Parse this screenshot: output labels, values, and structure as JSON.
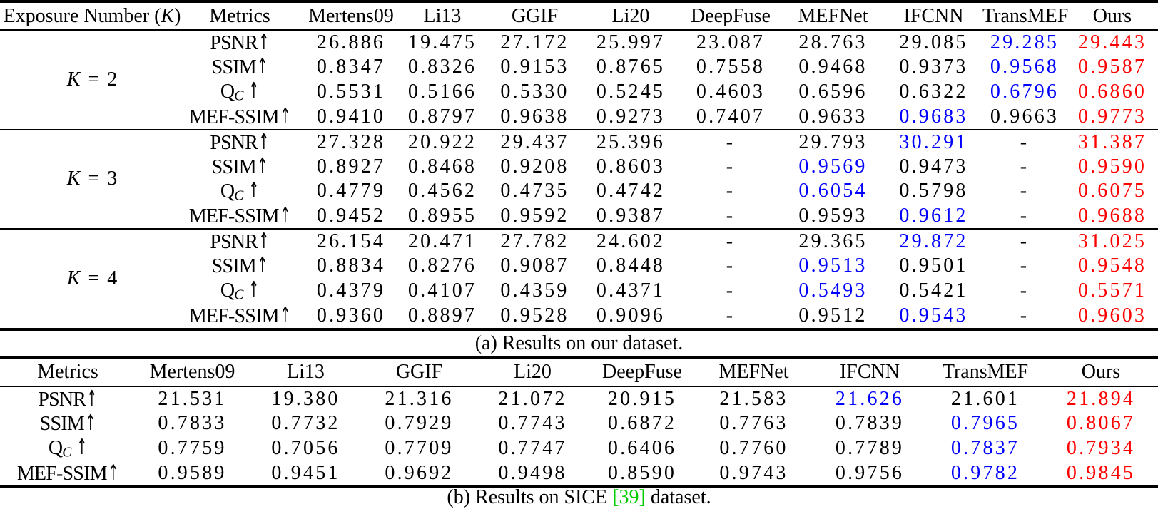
{
  "colors": {
    "best": "#ff0000",
    "second_best": "#0000ff",
    "citation": "#00cc00"
  },
  "table_a": {
    "columns": [
      "Exposure Number (K)",
      "Metrics",
      "Mertens09",
      "Li13",
      "GGIF",
      "Li20",
      "DeepFuse",
      "MEFNet",
      "IFCNN",
      "TransMEF",
      "Ours"
    ],
    "groups": [
      {
        "exposure": "K = 2",
        "rows": [
          {
            "metric": "PSNR↑",
            "values": [
              {
                "v": "26.886"
              },
              {
                "v": "19.475"
              },
              {
                "v": "27.172"
              },
              {
                "v": "25.997"
              },
              {
                "v": "23.087"
              },
              {
                "v": "28.763"
              },
              {
                "v": "29.085"
              },
              {
                "v": "29.285",
                "c": "second"
              },
              {
                "v": "29.443",
                "c": "best"
              }
            ]
          },
          {
            "metric": "SSIM↑",
            "values": [
              {
                "v": "0.8347"
              },
              {
                "v": "0.8326"
              },
              {
                "v": "0.9153"
              },
              {
                "v": "0.8765"
              },
              {
                "v": "0.7558"
              },
              {
                "v": "0.9468"
              },
              {
                "v": "0.9373"
              },
              {
                "v": "0.9568",
                "c": "second"
              },
              {
                "v": "0.9587",
                "c": "best"
              }
            ]
          },
          {
            "metric": "Q_C ↑",
            "values": [
              {
                "v": "0.5531"
              },
              {
                "v": "0.5166"
              },
              {
                "v": "0.5330"
              },
              {
                "v": "0.5245"
              },
              {
                "v": "0.4603"
              },
              {
                "v": "0.6596"
              },
              {
                "v": "0.6322"
              },
              {
                "v": "0.6796",
                "c": "second"
              },
              {
                "v": "0.6860",
                "c": "best"
              }
            ]
          },
          {
            "metric": "MEF-SSIM↑",
            "values": [
              {
                "v": "0.9410"
              },
              {
                "v": "0.8797"
              },
              {
                "v": "0.9638"
              },
              {
                "v": "0.9273"
              },
              {
                "v": "0.7407"
              },
              {
                "v": "0.9633"
              },
              {
                "v": "0.9683",
                "c": "second"
              },
              {
                "v": "0.9663"
              },
              {
                "v": "0.9773",
                "c": "best"
              }
            ]
          }
        ]
      },
      {
        "exposure": "K = 3",
        "rows": [
          {
            "metric": "PSNR↑",
            "values": [
              {
                "v": "27.328"
              },
              {
                "v": "20.922"
              },
              {
                "v": "29.437"
              },
              {
                "v": "25.396"
              },
              {
                "v": "-"
              },
              {
                "v": "29.793"
              },
              {
                "v": "30.291",
                "c": "second"
              },
              {
                "v": "-"
              },
              {
                "v": "31.387",
                "c": "best"
              }
            ]
          },
          {
            "metric": "SSIM↑",
            "values": [
              {
                "v": "0.8927"
              },
              {
                "v": "0.8468"
              },
              {
                "v": "0.9208"
              },
              {
                "v": "0.8603"
              },
              {
                "v": "-"
              },
              {
                "v": "0.9569",
                "c": "second"
              },
              {
                "v": "0.9473"
              },
              {
                "v": "-"
              },
              {
                "v": "0.9590",
                "c": "best"
              }
            ]
          },
          {
            "metric": "Q_C ↑",
            "values": [
              {
                "v": "0.4779"
              },
              {
                "v": "0.4562"
              },
              {
                "v": "0.4735"
              },
              {
                "v": "0.4742"
              },
              {
                "v": "-"
              },
              {
                "v": "0.6054",
                "c": "second"
              },
              {
                "v": "0.5798"
              },
              {
                "v": "-"
              },
              {
                "v": "0.6075",
                "c": "best"
              }
            ]
          },
          {
            "metric": "MEF-SSIM↑",
            "values": [
              {
                "v": "0.9452"
              },
              {
                "v": "0.8955"
              },
              {
                "v": "0.9592"
              },
              {
                "v": "0.9387"
              },
              {
                "v": "-"
              },
              {
                "v": "0.9593"
              },
              {
                "v": "0.9612",
                "c": "second"
              },
              {
                "v": "-"
              },
              {
                "v": "0.9688",
                "c": "best"
              }
            ]
          }
        ]
      },
      {
        "exposure": "K = 4",
        "rows": [
          {
            "metric": "PSNR↑",
            "values": [
              {
                "v": "26.154"
              },
              {
                "v": "20.471"
              },
              {
                "v": "27.782"
              },
              {
                "v": "24.602"
              },
              {
                "v": "-"
              },
              {
                "v": "29.365"
              },
              {
                "v": "29.872",
                "c": "second"
              },
              {
                "v": "-"
              },
              {
                "v": "31.025",
                "c": "best"
              }
            ]
          },
          {
            "metric": "SSIM↑",
            "values": [
              {
                "v": "0.8834"
              },
              {
                "v": "0.8276"
              },
              {
                "v": "0.9087"
              },
              {
                "v": "0.8448"
              },
              {
                "v": "-"
              },
              {
                "v": "0.9513",
                "c": "second"
              },
              {
                "v": "0.9501"
              },
              {
                "v": "-"
              },
              {
                "v": "0.9548",
                "c": "best"
              }
            ]
          },
          {
            "metric": "Q_C ↑",
            "values": [
              {
                "v": "0.4379"
              },
              {
                "v": "0.4107"
              },
              {
                "v": "0.4359"
              },
              {
                "v": "0.4371"
              },
              {
                "v": "-"
              },
              {
                "v": "0.5493",
                "c": "second"
              },
              {
                "v": "0.5421"
              },
              {
                "v": "-"
              },
              {
                "v": "0.5571",
                "c": "best"
              }
            ]
          },
          {
            "metric": "MEF-SSIM↑",
            "values": [
              {
                "v": "0.9360"
              },
              {
                "v": "0.8897"
              },
              {
                "v": "0.9528"
              },
              {
                "v": "0.9096"
              },
              {
                "v": "-"
              },
              {
                "v": "0.9512"
              },
              {
                "v": "0.9543",
                "c": "second"
              },
              {
                "v": "-"
              },
              {
                "v": "0.9603",
                "c": "best"
              }
            ]
          }
        ]
      }
    ],
    "caption": "(a) Results on our dataset."
  },
  "table_b": {
    "columns": [
      "Metrics",
      "Mertens09",
      "Li13",
      "GGIF",
      "Li20",
      "DeepFuse",
      "MEFNet",
      "IFCNN",
      "TransMEF",
      "Ours"
    ],
    "rows": [
      {
        "metric": "PSNR↑",
        "values": [
          {
            "v": "21.531"
          },
          {
            "v": "19.380"
          },
          {
            "v": "21.316"
          },
          {
            "v": "21.072"
          },
          {
            "v": "20.915"
          },
          {
            "v": "21.583"
          },
          {
            "v": "21.626",
            "c": "second"
          },
          {
            "v": "21.601"
          },
          {
            "v": "21.894",
            "c": "best"
          }
        ]
      },
      {
        "metric": "SSIM↑",
        "values": [
          {
            "v": "0.7833"
          },
          {
            "v": "0.7732"
          },
          {
            "v": "0.7929"
          },
          {
            "v": "0.7743"
          },
          {
            "v": "0.6872"
          },
          {
            "v": "0.7763"
          },
          {
            "v": "0.7839"
          },
          {
            "v": "0.7965",
            "c": "second"
          },
          {
            "v": "0.8067",
            "c": "best"
          }
        ]
      },
      {
        "metric": "Q_C ↑",
        "values": [
          {
            "v": "0.7759"
          },
          {
            "v": "0.7056"
          },
          {
            "v": "0.7709"
          },
          {
            "v": "0.7747"
          },
          {
            "v": "0.6406"
          },
          {
            "v": "0.7760"
          },
          {
            "v": "0.7789"
          },
          {
            "v": "0.7837",
            "c": "second"
          },
          {
            "v": "0.7934",
            "c": "best"
          }
        ]
      },
      {
        "metric": "MEF-SSIM↑",
        "values": [
          {
            "v": "0.9589"
          },
          {
            "v": "0.9451"
          },
          {
            "v": "0.9692"
          },
          {
            "v": "0.9498"
          },
          {
            "v": "0.8590"
          },
          {
            "v": "0.9743"
          },
          {
            "v": "0.9756"
          },
          {
            "v": "0.9782",
            "c": "second"
          },
          {
            "v": "0.9845",
            "c": "best"
          }
        ]
      }
    ],
    "caption_prefix": "(b) Results on SICE ",
    "caption_cite": "[39]",
    "caption_suffix": " dataset."
  }
}
